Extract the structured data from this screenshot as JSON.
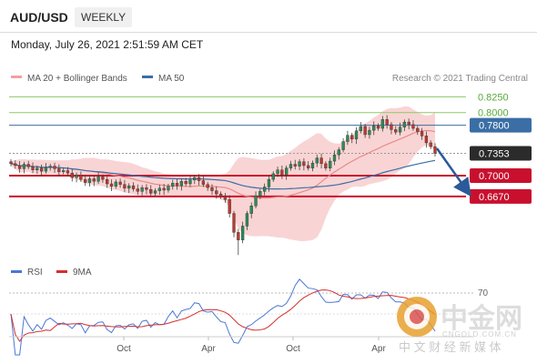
{
  "header": {
    "symbol": "AUD/USD",
    "period": "WEEKLY",
    "datetime": "Monday, July 26, 2021 2:51:59 AM CET"
  },
  "legend": {
    "ma20": "MA 20 + Bollinger Bands",
    "ma50": "MA 50",
    "credit": "Research © 2021 Trading Central",
    "rsi": "RSI",
    "ma9": "9MA"
  },
  "colors": {
    "green_line": "#8cc96a",
    "blue_line": "#3a6ea5",
    "red_line": "#c8102e",
    "last_label": "#2b2b2b",
    "bollinger": "#f7c6c6",
    "up_candle": "#2e8b57",
    "down_candle": "#c0392b",
    "rsi": "#4a77d4",
    "ma9": "#d32f2f"
  },
  "watermark": {
    "logo_text": "中金网",
    "url": "CNGOLD.COM.CN",
    "sub": "中 文 财 经 新 媒 体"
  },
  "chart_data": [
    {
      "type": "candlestick",
      "ylim": [
        0.56,
        0.84
      ],
      "levels": [
        {
          "name": "resistance-2",
          "value": "0.8250",
          "color": "#8cc96a"
        },
        {
          "name": "resistance-1",
          "value": "0.8000",
          "color": "#8cc96a"
        },
        {
          "name": "pivot",
          "value": "0.7800",
          "color": "#3a6ea5"
        },
        {
          "name": "last",
          "value": "0.7353",
          "color": "#2b2b2b"
        },
        {
          "name": "support-1",
          "value": "0.7000",
          "color": "#c8102e"
        },
        {
          "name": "support-2",
          "value": "0.6670",
          "color": "#c8102e"
        }
      ],
      "x_ticks": [
        "Oct",
        "Apr",
        "Oct",
        "Apr"
      ],
      "close": [
        0.719,
        0.716,
        0.711,
        0.718,
        0.714,
        0.709,
        0.712,
        0.707,
        0.713,
        0.715,
        0.711,
        0.706,
        0.708,
        0.704,
        0.697,
        0.701,
        0.694,
        0.689,
        0.695,
        0.691,
        0.698,
        0.694,
        0.687,
        0.683,
        0.69,
        0.686,
        0.68,
        0.684,
        0.679,
        0.675,
        0.681,
        0.678,
        0.672,
        0.676,
        0.68,
        0.677,
        0.683,
        0.688,
        0.684,
        0.691,
        0.687,
        0.693,
        0.697,
        0.692,
        0.686,
        0.681,
        0.676,
        0.671,
        0.667,
        0.662,
        0.64,
        0.61,
        0.598,
        0.62,
        0.64,
        0.652,
        0.668,
        0.675,
        0.682,
        0.694,
        0.703,
        0.709,
        0.701,
        0.712,
        0.718,
        0.715,
        0.722,
        0.716,
        0.712,
        0.72,
        0.728,
        0.719,
        0.712,
        0.723,
        0.733,
        0.741,
        0.754,
        0.764,
        0.758,
        0.771,
        0.778,
        0.765,
        0.772,
        0.779,
        0.775,
        0.789,
        0.781,
        0.773,
        0.769,
        0.777,
        0.785,
        0.781,
        0.775,
        0.77,
        0.763,
        0.752,
        0.746,
        0.7353
      ],
      "rsi_levels": [
        "70"
      ]
    }
  ]
}
